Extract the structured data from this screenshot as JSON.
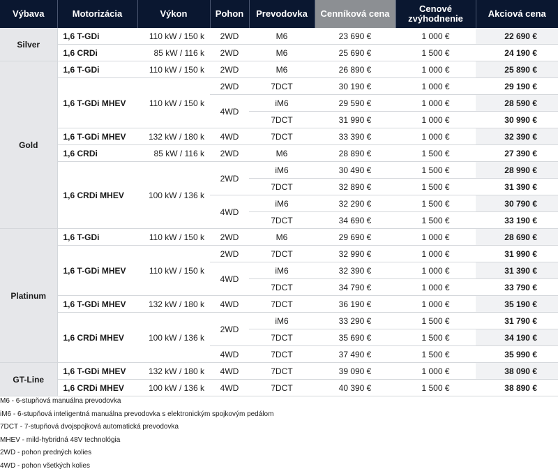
{
  "headers": {
    "trim": "Výbava",
    "engine": "Motorizácia",
    "power": "Výkon",
    "drive": "Pohon",
    "gearbox": "Prevodovka",
    "list_price": "Cenníková cena",
    "discount": "Cenové zvýhodnenie",
    "sale_price": "Akciová cena"
  },
  "trims": {
    "silver": "Silver",
    "gold": "Gold",
    "platinum": "Platinum",
    "gtline": "GT-Line"
  },
  "engines": {
    "tgdi": "1,6 T-GDi",
    "crdi": "1,6 CRDi",
    "tgdi_mhev": "1,6 T-GDi MHEV",
    "crdi_mhev": "1,6 CRDi MHEV"
  },
  "power": {
    "p110": "110 kW / 150 k",
    "p85": "85 kW / 116 k",
    "p132": "132 kW / 180 k",
    "p100": "100 kW / 136 k"
  },
  "drive": {
    "d2": "2WD",
    "d4": "4WD"
  },
  "gear": {
    "m6": "M6",
    "dct": "7DCT",
    "im6": "iM6"
  },
  "rows": [
    {
      "list": "23 690 €",
      "disc": "1 000 €",
      "sale": "22 690 €"
    },
    {
      "list": "25 690 €",
      "disc": "1 500 €",
      "sale": "24 190 €"
    },
    {
      "list": "26 890 €",
      "disc": "1 000 €",
      "sale": "25 890 €"
    },
    {
      "list": "30 190 €",
      "disc": "1 000 €",
      "sale": "29 190 €"
    },
    {
      "list": "29 590 €",
      "disc": "1 000 €",
      "sale": "28 590 €"
    },
    {
      "list": "31 990 €",
      "disc": "1 000 €",
      "sale": "30 990 €"
    },
    {
      "list": "33 390 €",
      "disc": "1 000 €",
      "sale": "32 390 €"
    },
    {
      "list": "28 890 €",
      "disc": "1 500 €",
      "sale": "27 390 €"
    },
    {
      "list": "30 490 €",
      "disc": "1 500 €",
      "sale": "28 990 €"
    },
    {
      "list": "32 890 €",
      "disc": "1 500 €",
      "sale": "31 390 €"
    },
    {
      "list": "32 290 €",
      "disc": "1 500 €",
      "sale": "30 790 €"
    },
    {
      "list": "34 690 €",
      "disc": "1 500 €",
      "sale": "33 190 €"
    },
    {
      "list": "29 690 €",
      "disc": "1 000 €",
      "sale": "28 690 €"
    },
    {
      "list": "32 990 €",
      "disc": "1 000 €",
      "sale": "31 990 €"
    },
    {
      "list": "32 390 €",
      "disc": "1 000 €",
      "sale": "31 390 €"
    },
    {
      "list": "34 790 €",
      "disc": "1 000 €",
      "sale": "33 790 €"
    },
    {
      "list": "36 190 €",
      "disc": "1 000 €",
      "sale": "35 190 €"
    },
    {
      "list": "33 290 €",
      "disc": "1 500 €",
      "sale": "31 790 €"
    },
    {
      "list": "35 690 €",
      "disc": "1 500 €",
      "sale": "34 190 €"
    },
    {
      "list": "37 490 €",
      "disc": "1 500 €",
      "sale": "35 990 €"
    },
    {
      "list": "39 090 €",
      "disc": "1 000 €",
      "sale": "38 090 €"
    },
    {
      "list": "40 390 €",
      "disc": "1 500 €",
      "sale": "38 890 €"
    }
  ],
  "notes": [
    "M6 - 6-stupňová manuálna prevodovka",
    "iM6 - 6-stupňová inteligentná manuálna prevodovka s elektronickým spojkovým pedálom",
    "7DCT - 7-stupňová dvojspojková automatická prevodovka",
    "MHEV - mild-hybridná 48V technológia",
    "2WD - pohon predných kolies",
    "4WD - pohon všetkých kolies"
  ]
}
